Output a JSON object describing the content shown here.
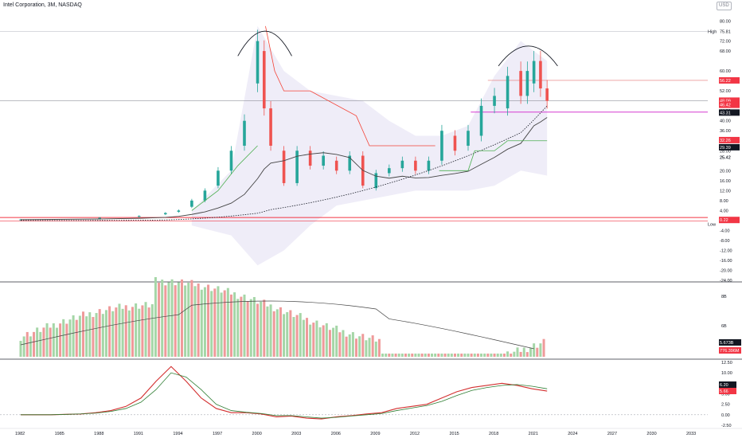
{
  "header": {
    "title": "Intel Corporation, 3M, NASDAQ"
  },
  "currency": "USD",
  "colors": {
    "up": "#26a69a",
    "down": "#ef5350",
    "vol_up": "#a5d6a7",
    "vol_down": "#ef9a9a",
    "band": "#e8e6f5",
    "sma": "#454545",
    "supertrend_up": "#4caf50",
    "supertrend_down": "#f44336",
    "macd": "#d32f2f",
    "signal": "#2e7d32",
    "hline_red": "#f23645",
    "hline_magenta": "#d63ad1"
  },
  "chart_data": [
    {
      "type": "candlestick",
      "name": "price",
      "title": "Intel Corporation, 3M, NASDAQ",
      "x_ticks": [
        "1982",
        "1985",
        "1988",
        "1991",
        "1994",
        "1997",
        "2000",
        "2003",
        "2006",
        "2009",
        "2012",
        "2015",
        "2018",
        "2021",
        "2024",
        "2027",
        "2030",
        "2033"
      ],
      "y_ticks": [
        80.0,
        72.0,
        68.0,
        60.0,
        52.0,
        44.0,
        40.0,
        36.0,
        28.0,
        25.42,
        20.0,
        16.0,
        12.0,
        8.0,
        4.0,
        0.22,
        -4.0,
        -8.0,
        -12.0,
        -16.0,
        -20.0,
        -24.0
      ],
      "ylim": [
        -24,
        84
      ],
      "markers": {
        "high": 75.81,
        "low": 0.22
      },
      "price_tags": [
        {
          "label": "High",
          "value": "75.81"
        },
        {
          "label": "",
          "value": "56.22"
        },
        {
          "label": "",
          "value": "48.09"
        },
        {
          "label": "",
          "value": "46.42"
        },
        {
          "label": "",
          "value": "43.31"
        },
        {
          "label": "",
          "value": "32.26"
        },
        {
          "label": "",
          "value": "29.39"
        },
        {
          "label": "",
          "value": "25.42"
        },
        {
          "label": "",
          "value": "0.22"
        },
        {
          "label": "Low",
          "value": ""
        }
      ],
      "bars_quarterly": [
        {
          "t": 1982.0,
          "o": 0.3,
          "c": 0.4
        },
        {
          "t": 1988.0,
          "o": 1.0,
          "c": 1.1
        },
        {
          "t": 1991.0,
          "o": 1.5,
          "c": 1.8
        },
        {
          "t": 1993.0,
          "o": 2.5,
          "c": 3.0
        },
        {
          "t": 1994.0,
          "o": 3.5,
          "c": 4.0
        },
        {
          "t": 1995.0,
          "o": 5.5,
          "c": 8.0
        },
        {
          "t": 1996.0,
          "o": 8.0,
          "c": 12.0
        },
        {
          "t": 1997.0,
          "o": 14.0,
          "c": 20.0
        },
        {
          "t": 1998.0,
          "o": 20.0,
          "c": 28.0
        },
        {
          "t": 1999.0,
          "o": 30.0,
          "c": 40.0
        },
        {
          "t": 2000.0,
          "o": 55.0,
          "c": 72.0
        },
        {
          "t": 2000.5,
          "o": 68.0,
          "c": 45.0
        },
        {
          "t": 2001.0,
          "o": 45.0,
          "c": 30.0
        },
        {
          "t": 2002.0,
          "o": 28.0,
          "c": 15.0
        },
        {
          "t": 2003.0,
          "o": 15.0,
          "c": 28.0
        },
        {
          "t": 2004.0,
          "o": 28.0,
          "c": 22.0
        },
        {
          "t": 2005.0,
          "o": 22.0,
          "c": 26.0
        },
        {
          "t": 2006.0,
          "o": 24.0,
          "c": 20.0
        },
        {
          "t": 2007.0,
          "o": 20.0,
          "c": 26.0
        },
        {
          "t": 2008.0,
          "o": 26.0,
          "c": 14.0
        },
        {
          "t": 2009.0,
          "o": 13.0,
          "c": 19.0
        },
        {
          "t": 2010.0,
          "o": 19.0,
          "c": 21.0
        },
        {
          "t": 2011.0,
          "o": 21.0,
          "c": 24.0
        },
        {
          "t": 2012.0,
          "o": 24.0,
          "c": 20.0
        },
        {
          "t": 2013.0,
          "o": 20.0,
          "c": 24.0
        },
        {
          "t": 2014.0,
          "o": 24.0,
          "c": 36.0
        },
        {
          "t": 2015.0,
          "o": 34.0,
          "c": 28.0
        },
        {
          "t": 2016.0,
          "o": 30.0,
          "c": 36.0
        },
        {
          "t": 2017.0,
          "o": 34.0,
          "c": 46.0
        },
        {
          "t": 2018.0,
          "o": 46.0,
          "c": 50.0
        },
        {
          "t": 2019.0,
          "o": 45.0,
          "c": 58.0
        },
        {
          "t": 2020.0,
          "o": 60.0,
          "c": 50.0
        },
        {
          "t": 2020.5,
          "o": 50.0,
          "c": 60.0
        },
        {
          "t": 2021.0,
          "o": 55.0,
          "c": 64.0
        },
        {
          "t": 2021.5,
          "o": 64.0,
          "c": 53.0
        },
        {
          "t": 2022.0,
          "o": 53.0,
          "c": 48.0
        }
      ]
    },
    {
      "type": "bar",
      "name": "volume",
      "y_ticks": [
        "8B",
        "6B",
        "4B"
      ],
      "price_tags": [
        {
          "value": "5.673B"
        },
        {
          "value": "776.396M"
        }
      ]
    },
    {
      "type": "line",
      "name": "macd",
      "y_ticks": [
        12.5,
        10.0,
        7.5,
        5.0,
        2.5,
        0.0,
        -2.5
      ],
      "ylim": [
        -2.5,
        12.5
      ],
      "price_tags": [
        {
          "value": "6.20"
        },
        {
          "value": "5.66"
        }
      ],
      "series": [
        {
          "values": [
            0,
            0,
            0,
            0.1,
            0.2,
            0.5,
            1.0,
            2.0,
            4.0,
            8.0,
            11.5,
            8.0,
            4.0,
            1.5,
            0.5,
            0.5,
            0.2,
            -0.5,
            -0.3,
            -0.8,
            -1.0,
            -0.5,
            -0.2,
            0.2,
            0.5,
            1.5,
            2.0,
            2.5,
            4.0,
            5.5,
            6.5,
            7.0,
            7.5,
            7.0,
            6.2,
            5.66
          ]
        },
        {
          "values": [
            0,
            0,
            0,
            0.1,
            0.2,
            0.4,
            0.8,
            1.5,
            3.0,
            6.0,
            10.0,
            9.0,
            6.0,
            2.5,
            1.0,
            0.6,
            0.3,
            -0.2,
            -0.2,
            -0.5,
            -0.8,
            -0.6,
            -0.3,
            0.0,
            0.3,
            1.0,
            1.6,
            2.2,
            3.2,
            4.6,
            5.8,
            6.5,
            7.0,
            7.2,
            6.8,
            6.2
          ]
        }
      ]
    }
  ]
}
